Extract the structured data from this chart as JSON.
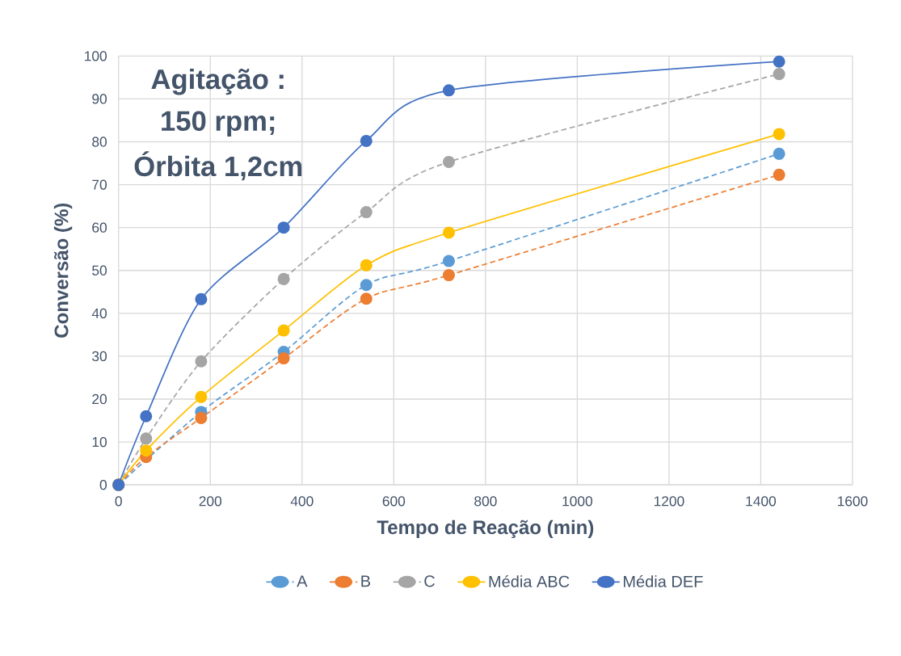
{
  "chart_data": {
    "type": "line",
    "xlabel": "Tempo de Reação (min)",
    "ylabel": "Conversão (%)",
    "x": [
      0,
      60,
      180,
      360,
      540,
      720,
      1440
    ],
    "series": [
      {
        "name": "A",
        "color": "#5b9bd5",
        "line_style": "dashed",
        "values": [
          0,
          null,
          17,
          31,
          46.6,
          52.2,
          77.2
        ]
      },
      {
        "name": "B",
        "color": "#ed7d31",
        "line_style": "dashed",
        "values": [
          0,
          6.5,
          15.6,
          29.5,
          43.4,
          48.9,
          72.3
        ]
      },
      {
        "name": "C",
        "color": "#a5a5a5",
        "line_style": "dashed",
        "values": [
          0,
          10.8,
          28.8,
          48,
          63.6,
          75.3,
          95.8
        ]
      },
      {
        "name": "Média ABC",
        "color": "#ffc000",
        "line_style": "solid",
        "values": [
          0,
          8,
          20.5,
          36,
          51.2,
          58.8,
          81.8
        ]
      },
      {
        "name": "Média DEF",
        "color": "#4472c4",
        "line_style": "solid",
        "values": [
          0,
          16,
          43.3,
          60,
          80.2,
          92,
          98.7
        ]
      }
    ],
    "xlim": [
      0,
      1600
    ],
    "xticks": [
      0,
      200,
      400,
      600,
      800,
      1000,
      1200,
      1400,
      1600
    ],
    "ylim": [
      0,
      100
    ],
    "yticks": [
      0,
      10,
      20,
      30,
      40,
      50,
      60,
      70,
      80,
      90,
      100
    ],
    "grid": true,
    "legend": "bottom",
    "marker": "circle",
    "annotations": [
      "Agitação :",
      "150 rpm;",
      "Órbita 1,2cm"
    ]
  }
}
